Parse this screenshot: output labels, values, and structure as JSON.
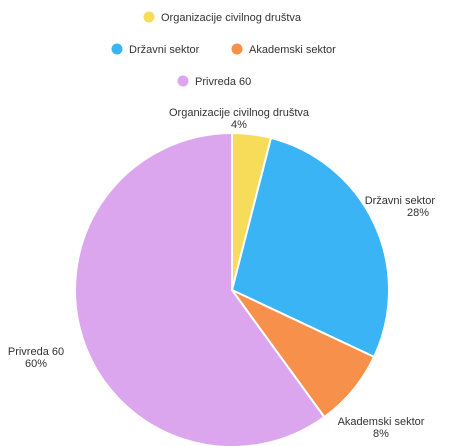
{
  "chart_data": {
    "type": "pie",
    "title": "",
    "legend_position": "top",
    "slices": [
      {
        "label": "Organizacije civilnog društva",
        "value": 4,
        "value_label": "4%",
        "color": "#f7dc5a"
      },
      {
        "label": "Državni sektor",
        "value": 28,
        "value_label": "28%",
        "color": "#3ab4f5"
      },
      {
        "label": "Akademski sektor",
        "value": 8,
        "value_label": "8%",
        "color": "#f7904a"
      },
      {
        "label": "Privreda 60",
        "value": 60,
        "value_label": "60%",
        "color": "#dca6ef"
      }
    ]
  }
}
